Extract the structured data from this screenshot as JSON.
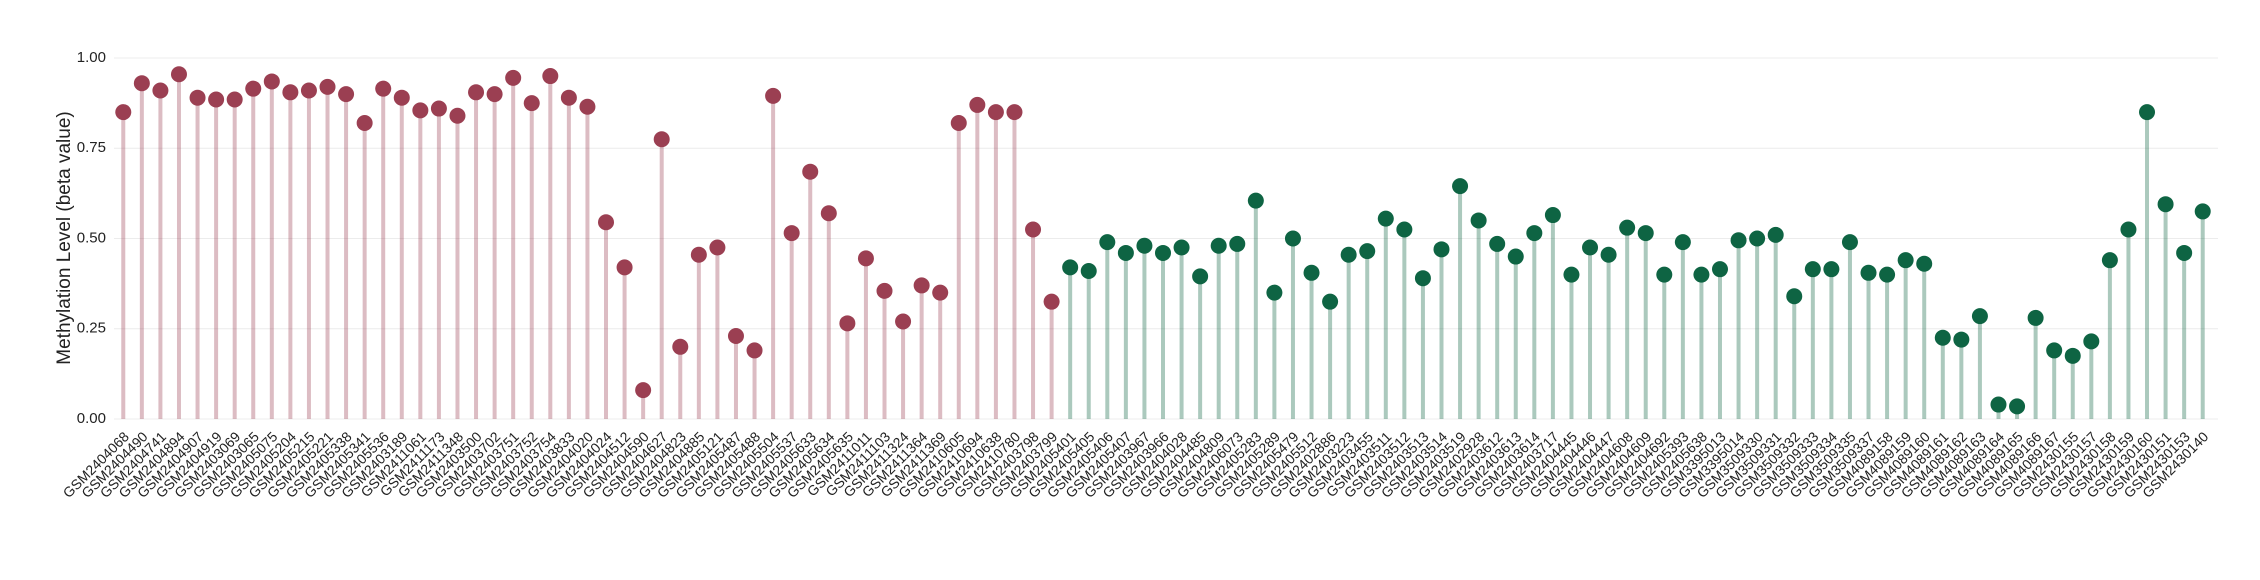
{
  "chart_data": {
    "type": "lollipop",
    "y_label": "Methylation Level (beta value)",
    "ylim": [
      0,
      1
    ],
    "yticks": [
      {
        "value": 0,
        "label": "0.00"
      },
      {
        "value": 0.25,
        "label": "0.25"
      },
      {
        "value": 0.5,
        "label": "0.50"
      },
      {
        "value": 0.75,
        "label": "0.75"
      },
      {
        "value": 1,
        "label": "1.00"
      }
    ],
    "grid": true,
    "categories": [
      "GSM2404068",
      "GSM2404490",
      "GSM2404741",
      "GSM2404894",
      "GSM2404907",
      "GSM2404919",
      "GSM2403069",
      "GSM2403065",
      "GSM2405075",
      "GSM2405204",
      "GSM2405215",
      "GSM2405221",
      "GSM2405338",
      "GSM2405341",
      "GSM2405536",
      "GSM2403189",
      "GSM2411061",
      "GSM2411173",
      "GSM2411348",
      "GSM2403500",
      "GSM2403702",
      "GSM2403751",
      "GSM2403752",
      "GSM2403754",
      "GSM2403833",
      "GSM2404020",
      "GSM2404024",
      "GSM2404512",
      "GSM2404590",
      "GSM2404627",
      "GSM2404823",
      "GSM2404885",
      "GSM2405121",
      "GSM2405487",
      "GSM2405488",
      "GSM2405504",
      "GSM2405537",
      "GSM2405633",
      "GSM2405634",
      "GSM2405635",
      "GSM2411011",
      "GSM2411103",
      "GSM2411324",
      "GSM2411364",
      "GSM2411369",
      "GSM2410605",
      "GSM2410694",
      "GSM2410638",
      "GSM2410780",
      "GSM2403798",
      "GSM2403799",
      "GSM2405401",
      "GSM2405405",
      "GSM2405406",
      "GSM2405407",
      "GSM2403967",
      "GSM2403966",
      "GSM2404028",
      "GSM2404485",
      "GSM2404809",
      "GSM2406073",
      "GSM2405283",
      "GSM2405289",
      "GSM2405479",
      "GSM2405512",
      "GSM2402886",
      "GSM2403223",
      "GSM2403455",
      "GSM2403511",
      "GSM2403512",
      "GSM2403513",
      "GSM2403514",
      "GSM2403519",
      "GSM2402928",
      "GSM2403612",
      "GSM2403613",
      "GSM2403614",
      "GSM2403717",
      "GSM2404445",
      "GSM2404446",
      "GSM2404447",
      "GSM2404608",
      "GSM2404609",
      "GSM2404692",
      "GSM2405393",
      "GSM2405638",
      "GSM3395013",
      "GSM3395014",
      "GSM3509330",
      "GSM3509331",
      "GSM3509332",
      "GSM3509333",
      "GSM3509334",
      "GSM3509335",
      "GSM3509337",
      "GSM4089158",
      "GSM4089159",
      "GSM4089160",
      "GSM4089161",
      "GSM4089162",
      "GSM4089163",
      "GSM4089164",
      "GSM4089165",
      "GSM4089166",
      "GSM4089167",
      "GSM2430155",
      "GSM2430157",
      "GSM2430158",
      "GSM2430159",
      "GSM2430160",
      "GSM2430151",
      "GSM2430153",
      "GSM2430140"
    ],
    "series": [
      {
        "color": "#9b3f52",
        "values": [
          0.85,
          0.93,
          0.91,
          0.955,
          0.89,
          0.885,
          0.885,
          0.915,
          0.935,
          0.905,
          0.91,
          0.92,
          0.9,
          0.82,
          0.915,
          0.89,
          0.855,
          0.86,
          0.84,
          0.905,
          0.9,
          0.945,
          0.875,
          0.95,
          0.89,
          0.865,
          0.545,
          0.42,
          0.08,
          0.775,
          0.2,
          0.455,
          0.475,
          0.23,
          0.19,
          0.895,
          0.515,
          0.685,
          0.57,
          0.265,
          0.445,
          0.355,
          0.27,
          0.37,
          0.35,
          0.82,
          0.87,
          0.85,
          0.85,
          0.525,
          0.325,
          null,
          null,
          null,
          null,
          null,
          null,
          null,
          null,
          null,
          null,
          null,
          null,
          null,
          null,
          null,
          null,
          null,
          null,
          null,
          null,
          null,
          null,
          null,
          null,
          null,
          null,
          null,
          null,
          null,
          null,
          null,
          null,
          null,
          null,
          null,
          null,
          null,
          null,
          null,
          null,
          null,
          null,
          null,
          null,
          null,
          null,
          null,
          null,
          null,
          null,
          null,
          null,
          null,
          null,
          null,
          null,
          null,
          null,
          null,
          null,
          null,
          null
        ]
      },
      {
        "color": "#0e6443",
        "values": [
          null,
          null,
          null,
          null,
          null,
          null,
          null,
          null,
          null,
          null,
          null,
          null,
          null,
          null,
          null,
          null,
          null,
          null,
          null,
          null,
          null,
          null,
          null,
          null,
          null,
          null,
          null,
          null,
          null,
          null,
          null,
          null,
          null,
          null,
          null,
          null,
          null,
          null,
          null,
          null,
          null,
          null,
          null,
          null,
          null,
          null,
          null,
          null,
          null,
          null,
          null,
          0.42,
          0.41,
          0.49,
          0.46,
          0.48,
          0.46,
          0.475,
          0.395,
          0.48,
          0.485,
          0.605,
          0.35,
          0.5,
          0.405,
          0.325,
          0.455,
          0.465,
          0.555,
          0.525,
          0.39,
          0.47,
          0.645,
          0.55,
          0.485,
          0.45,
          0.515,
          0.565,
          0.4,
          0.475,
          0.455,
          0.53,
          0.515,
          0.4,
          0.49,
          0.4,
          0.415,
          0.495,
          0.5,
          0.51,
          0.34,
          0.415,
          0.415,
          0.49,
          0.405,
          0.4,
          0.44,
          0.43,
          0.225,
          0.22,
          0.285,
          0.04,
          0.035,
          0.28,
          0.19,
          0.175,
          0.215,
          0.44,
          0.525,
          0.85,
          0.595,
          0.46,
          0.575
        ]
      }
    ]
  }
}
